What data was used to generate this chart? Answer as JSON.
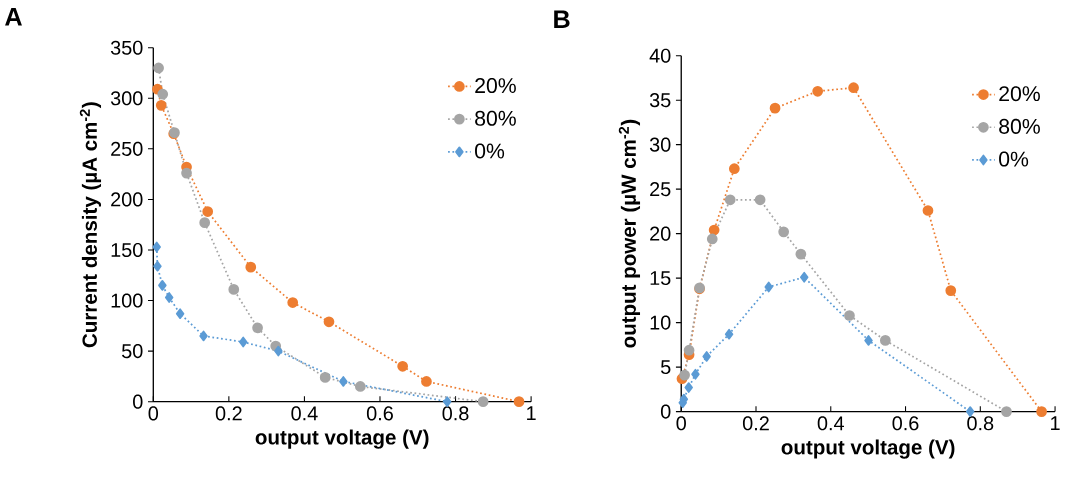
{
  "chart_data": [
    {
      "type": "line",
      "title": "A",
      "xlabel": "output voltage (V)",
      "ylabel": "Current density (µA cm$^{-2}$)",
      "xlim": [
        0,
        1
      ],
      "ylim": [
        0,
        350
      ],
      "xticks": [
        0,
        0.2,
        0.4,
        0.6,
        0.8,
        1
      ],
      "yticks": [
        0,
        50,
        100,
        150,
        200,
        250,
        300,
        350
      ],
      "legend": "top right",
      "line_style": "dotted",
      "series": [
        {
          "name": "20%",
          "color": "#ed7d31",
          "marker": "circle",
          "x": [
            0.011,
            0.021,
            0.054,
            0.088,
            0.144,
            0.258,
            0.369,
            0.465,
            0.66,
            0.723,
            0.968
          ],
          "values": [
            309,
            293,
            265,
            232,
            188,
            133,
            98,
            79,
            35,
            20,
            0
          ]
        },
        {
          "name": "80%",
          "color": "#a5a5a5",
          "marker": "circle",
          "x": [
            0.014,
            0.025,
            0.056,
            0.088,
            0.136,
            0.213,
            0.276,
            0.324,
            0.455,
            0.548,
            0.873
          ],
          "values": [
            330,
            304,
            266,
            226,
            177,
            111,
            73,
            55,
            24,
            15,
            0
          ]
        },
        {
          "name": "0%",
          "color": "#5b9bd5",
          "marker": "diamond",
          "x": [
            0.009,
            0.011,
            0.024,
            0.042,
            0.071,
            0.133,
            0.238,
            0.331,
            0.503,
            0.778
          ],
          "values": [
            153,
            134,
            115,
            103,
            87,
            65,
            59,
            50,
            20,
            0
          ]
        }
      ]
    },
    {
      "type": "line",
      "title": "B",
      "xlabel": "output voltage (V)",
      "ylabel": "output power (µW cm$^{-2}$)",
      "xlim": [
        0,
        1
      ],
      "ylim": [
        0,
        40
      ],
      "xticks": [
        0,
        0.2,
        0.4,
        0.6,
        0.8,
        1
      ],
      "yticks": [
        0,
        5,
        10,
        15,
        20,
        25,
        30,
        35,
        40
      ],
      "legend": "top right",
      "line_style": "dotted",
      "series": [
        {
          "name": "20%",
          "color": "#ed7d31",
          "marker": "circle",
          "x": [
            0.002,
            0.021,
            0.049,
            0.088,
            0.142,
            0.251,
            0.365,
            0.461,
            0.66,
            0.721,
            0.964
          ],
          "values": [
            3.7,
            6.4,
            13.8,
            20.4,
            27.3,
            34.1,
            36.0,
            36.4,
            22.6,
            13.6,
            0
          ]
        },
        {
          "name": "80%",
          "color": "#a5a5a5",
          "marker": "circle",
          "x": [
            0.009,
            0.021,
            0.049,
            0.083,
            0.131,
            0.211,
            0.274,
            0.32,
            0.45,
            0.546,
            0.87
          ],
          "values": [
            4.1,
            6.9,
            13.9,
            19.4,
            23.8,
            23.8,
            20.2,
            17.7,
            10.8,
            8.0,
            0
          ]
        },
        {
          "name": "0%",
          "color": "#5b9bd5",
          "marker": "diamond",
          "x": [
            0.004,
            0.007,
            0.02,
            0.038,
            0.068,
            0.128,
            0.234,
            0.329,
            0.501,
            0.773
          ],
          "values": [
            1.0,
            1.4,
            2.7,
            4.2,
            6.2,
            8.7,
            14.0,
            15.1,
            8.0,
            0
          ]
        }
      ]
    }
  ]
}
